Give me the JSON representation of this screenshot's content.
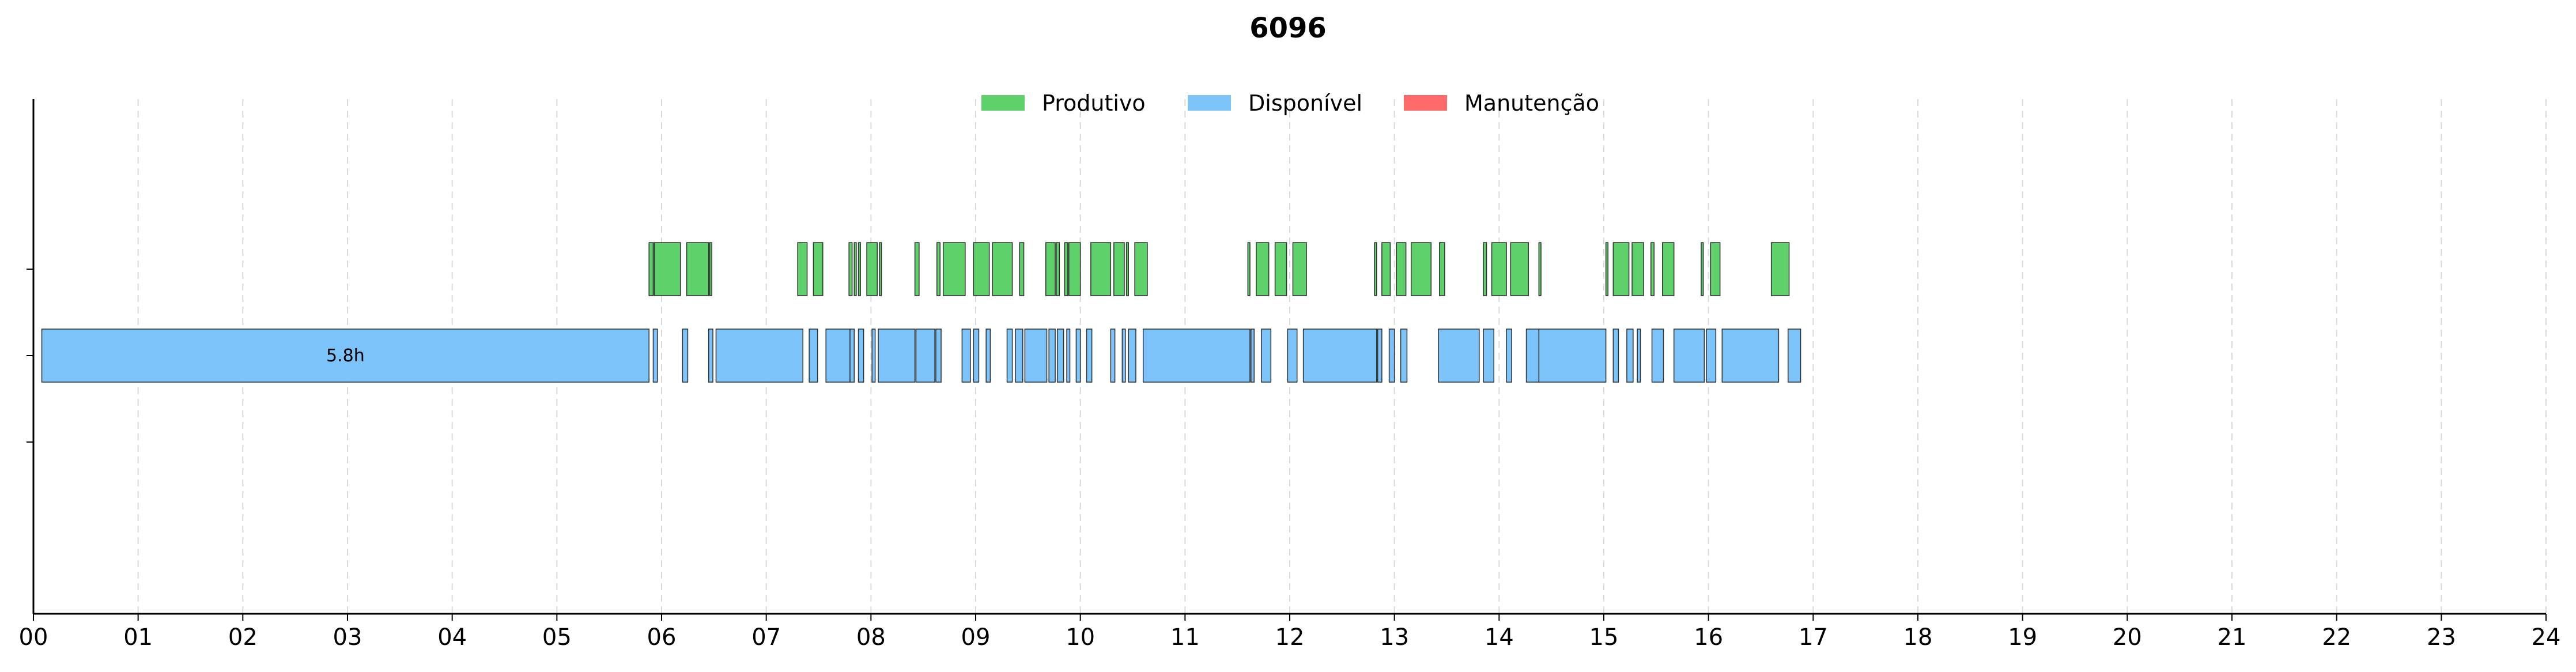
{
  "chart_data": {
    "type": "gantt",
    "title": "6096",
    "xlabel": "",
    "ylabel": "",
    "xlim": [
      0,
      24
    ],
    "x_tick_labels": [
      "00",
      "01",
      "02",
      "03",
      "04",
      "05",
      "06",
      "07",
      "08",
      "09",
      "10",
      "11",
      "12",
      "13",
      "14",
      "15",
      "16",
      "17",
      "18",
      "19",
      "20",
      "21",
      "22",
      "23",
      "24"
    ],
    "grid": "vertical dashed",
    "legend_position": "top-center",
    "legend": [
      {
        "name": "Produtivo",
        "color": "#5fd16b"
      },
      {
        "name": "Disponível",
        "color": "#7cc3fa"
      },
      {
        "name": "Manutenção",
        "color": "#ff6b6b"
      }
    ],
    "series": [
      {
        "name": "Produtivo",
        "row": 2,
        "color": "#5fd16b",
        "intervals": [
          [
            5.88,
            5.92
          ],
          [
            5.93,
            6.18
          ],
          [
            6.24,
            6.45
          ],
          [
            6.46,
            6.48
          ],
          [
            7.3,
            7.39
          ],
          [
            7.45,
            7.54
          ],
          [
            7.79,
            7.82
          ],
          [
            7.84,
            7.86
          ],
          [
            7.88,
            7.9
          ],
          [
            7.96,
            8.06
          ],
          [
            8.08,
            8.1
          ],
          [
            8.42,
            8.46
          ],
          [
            8.63,
            8.66
          ],
          [
            8.69,
            8.9
          ],
          [
            8.98,
            9.13
          ],
          [
            9.16,
            9.35
          ],
          [
            9.42,
            9.46
          ],
          [
            9.67,
            9.76
          ],
          [
            9.77,
            9.8
          ],
          [
            9.85,
            9.88
          ],
          [
            9.89,
            10.0
          ],
          [
            10.1,
            10.29
          ],
          [
            10.32,
            10.42
          ],
          [
            10.44,
            10.46
          ],
          [
            10.52,
            10.64
          ],
          [
            11.6,
            11.62
          ],
          [
            11.68,
            11.8
          ],
          [
            11.86,
            11.97
          ],
          [
            12.03,
            12.16
          ],
          [
            12.81,
            12.83
          ],
          [
            12.88,
            12.96
          ],
          [
            13.02,
            13.11
          ],
          [
            13.16,
            13.35
          ],
          [
            13.43,
            13.48
          ],
          [
            13.85,
            13.88
          ],
          [
            13.93,
            14.07
          ],
          [
            14.11,
            14.28
          ],
          [
            14.38,
            14.4
          ],
          [
            15.02,
            15.04
          ],
          [
            15.09,
            15.24
          ],
          [
            15.27,
            15.38
          ],
          [
            15.45,
            15.48
          ],
          [
            15.56,
            15.67
          ],
          [
            15.93,
            15.95
          ],
          [
            16.02,
            16.11
          ],
          [
            16.6,
            16.77
          ]
        ]
      },
      {
        "name": "Disponível",
        "row": 1,
        "color": "#7cc3fa",
        "intervals": [
          [
            0.08,
            5.88
          ],
          [
            5.92,
            5.96
          ],
          [
            6.2,
            6.25
          ],
          [
            6.45,
            6.49
          ],
          [
            6.52,
            7.35
          ],
          [
            7.41,
            7.49
          ],
          [
            7.57,
            7.8
          ],
          [
            7.8,
            7.84
          ],
          [
            7.88,
            7.93
          ],
          [
            8.01,
            8.04
          ],
          [
            8.07,
            8.42
          ],
          [
            8.43,
            8.61
          ],
          [
            8.62,
            8.67
          ],
          [
            8.87,
            8.95
          ],
          [
            8.98,
            9.03
          ],
          [
            9.1,
            9.14
          ],
          [
            9.3,
            9.35
          ],
          [
            9.38,
            9.45
          ],
          [
            9.47,
            9.68
          ],
          [
            9.7,
            9.76
          ],
          [
            9.78,
            9.84
          ],
          [
            9.87,
            9.9
          ],
          [
            9.96,
            10.0
          ],
          [
            10.06,
            10.11
          ],
          [
            10.29,
            10.33
          ],
          [
            10.4,
            10.43
          ],
          [
            10.46,
            10.53
          ],
          [
            10.6,
            11.62
          ],
          [
            11.63,
            11.66
          ],
          [
            11.73,
            11.82
          ],
          [
            11.98,
            12.07
          ],
          [
            12.13,
            12.83
          ],
          [
            12.84,
            12.88
          ],
          [
            12.95,
            13.0
          ],
          [
            13.06,
            13.12
          ],
          [
            13.42,
            13.81
          ],
          [
            13.85,
            13.95
          ],
          [
            14.07,
            14.12
          ],
          [
            14.26,
            14.38
          ],
          [
            14.38,
            15.02
          ],
          [
            15.09,
            15.14
          ],
          [
            15.22,
            15.28
          ],
          [
            15.32,
            15.35
          ],
          [
            15.46,
            15.57
          ],
          [
            15.67,
            15.96
          ],
          [
            15.98,
            16.07
          ],
          [
            16.13,
            16.67
          ],
          [
            16.76,
            16.88
          ]
        ]
      },
      {
        "name": "Manutenção",
        "row": 0,
        "color": "#ff6b6b",
        "intervals": []
      }
    ],
    "annotations": [
      {
        "text": "5.8h",
        "x": 2.98,
        "row": 1
      }
    ]
  }
}
